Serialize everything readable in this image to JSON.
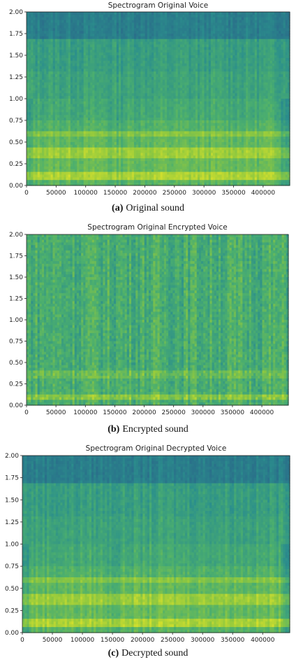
{
  "chart_data": [
    {
      "type": "heatmap",
      "title": "Spectrogram Original Voice",
      "caption_label": "(a)",
      "caption_text": "Original sound",
      "xlim": [
        0,
        445000
      ],
      "ylim": [
        0,
        2.0
      ],
      "x_ticks": [
        "0",
        "50000",
        "100000",
        "150000",
        "200000",
        "250000",
        "300000",
        "350000",
        "400000"
      ],
      "y_ticks": [
        "0.00",
        "0.25",
        "0.50",
        "0.75",
        "1.00",
        "1.25",
        "1.50",
        "1.75",
        "2.00"
      ],
      "bands": [
        {
          "from": 0.0,
          "to": 0.05,
          "level": 0.55
        },
        {
          "from": 0.05,
          "to": 0.16,
          "level": 0.85
        },
        {
          "from": 0.16,
          "to": 0.3,
          "level": 0.6
        },
        {
          "from": 0.3,
          "to": 0.45,
          "level": 0.8
        },
        {
          "from": 0.45,
          "to": 0.55,
          "level": 0.58
        },
        {
          "from": 0.55,
          "to": 0.62,
          "level": 0.72
        },
        {
          "from": 0.62,
          "to": 0.75,
          "level": 0.52
        },
        {
          "from": 0.75,
          "to": 1.0,
          "level": 0.45
        },
        {
          "from": 1.0,
          "to": 1.3,
          "level": 0.4
        },
        {
          "from": 1.3,
          "to": 1.68,
          "level": 0.36
        },
        {
          "from": 1.68,
          "to": 2.0,
          "level": 0.12
        }
      ]
    },
    {
      "type": "heatmap",
      "title": "Spectrogram Original Encrypted Voice",
      "caption_label": "(b)",
      "caption_text": "Encrypted sound",
      "xlim": [
        0,
        445000
      ],
      "ylim": [
        0,
        2.0
      ],
      "x_ticks": [
        "0",
        "50000",
        "100000",
        "150000",
        "200000",
        "250000",
        "300000",
        "350000",
        "400000"
      ],
      "y_ticks": [
        "0.00",
        "0.25",
        "0.50",
        "0.75",
        "1.00",
        "1.25",
        "1.50",
        "1.75",
        "2.00"
      ],
      "bands": [
        {
          "from": 0.0,
          "to": 0.05,
          "level": 0.5
        },
        {
          "from": 0.05,
          "to": 0.12,
          "level": 0.72
        },
        {
          "from": 0.12,
          "to": 0.3,
          "level": 0.5
        },
        {
          "from": 0.3,
          "to": 0.42,
          "level": 0.62
        },
        {
          "from": 0.42,
          "to": 2.0,
          "level": 0.48
        }
      ]
    },
    {
      "type": "heatmap",
      "title": "Spectrogram Original Decrypted Voice",
      "caption_label": "(c)",
      "caption_text": "Decrypted sound",
      "xlim": [
        0,
        445000
      ],
      "ylim": [
        0,
        2.0
      ],
      "x_ticks": [
        "0",
        "50000",
        "100000",
        "150000",
        "200000",
        "250000",
        "300000",
        "350000",
        "400000"
      ],
      "y_ticks": [
        "0.00",
        "0.25",
        "0.50",
        "0.75",
        "1.00",
        "1.25",
        "1.50",
        "1.75",
        "2.00"
      ],
      "bands": [
        {
          "from": 0.0,
          "to": 0.05,
          "level": 0.55
        },
        {
          "from": 0.05,
          "to": 0.16,
          "level": 0.85
        },
        {
          "from": 0.16,
          "to": 0.3,
          "level": 0.6
        },
        {
          "from": 0.3,
          "to": 0.45,
          "level": 0.8
        },
        {
          "from": 0.45,
          "to": 0.55,
          "level": 0.58
        },
        {
          "from": 0.55,
          "to": 0.62,
          "level": 0.72
        },
        {
          "from": 0.62,
          "to": 0.75,
          "level": 0.52
        },
        {
          "from": 0.75,
          "to": 1.0,
          "level": 0.45
        },
        {
          "from": 1.0,
          "to": 1.3,
          "level": 0.4
        },
        {
          "from": 1.3,
          "to": 1.68,
          "level": 0.36
        },
        {
          "from": 1.68,
          "to": 2.0,
          "level": 0.12
        }
      ]
    }
  ],
  "colormap": [
    "#2a6f8a",
    "#2b8f8c",
    "#4caf6e",
    "#8fc83f",
    "#dde32a"
  ]
}
